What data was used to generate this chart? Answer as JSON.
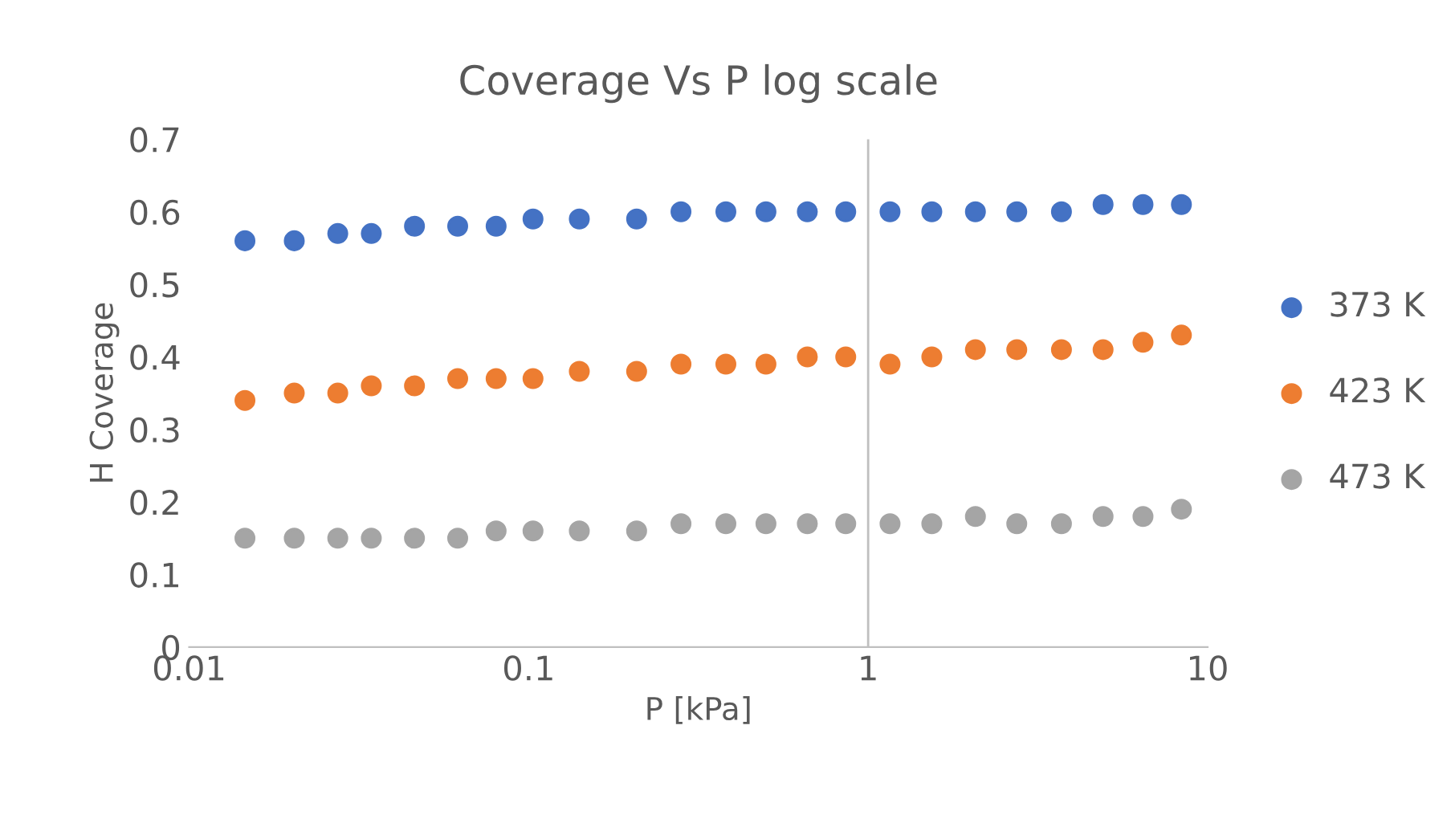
{
  "chart_data": {
    "type": "scatter",
    "title": "Coverage Vs P log scale",
    "xlabel": "P [kPa]",
    "ylabel": "H Coverage",
    "x": [
      0.0146,
      0.0204,
      0.0274,
      0.0344,
      0.0461,
      0.0618,
      0.0802,
      0.103,
      0.141,
      0.208,
      0.281,
      0.381,
      0.5,
      0.662,
      0.859,
      1.16,
      1.54,
      2.07,
      2.74,
      3.71,
      4.92,
      6.45,
      8.37
    ],
    "series": [
      {
        "name": "373 K",
        "color": "#4472c4",
        "values": [
          0.56,
          0.56,
          0.57,
          0.57,
          0.58,
          0.58,
          0.58,
          0.59,
          0.59,
          0.59,
          0.6,
          0.6,
          0.6,
          0.6,
          0.6,
          0.6,
          0.6,
          0.6,
          0.6,
          0.6,
          0.61,
          0.61,
          0.61
        ]
      },
      {
        "name": "423 K",
        "color": "#ed7d31",
        "values": [
          0.34,
          0.35,
          0.35,
          0.36,
          0.36,
          0.37,
          0.37,
          0.37,
          0.38,
          0.38,
          0.39,
          0.39,
          0.39,
          0.4,
          0.4,
          0.39,
          0.4,
          0.41,
          0.41,
          0.41,
          0.41,
          0.42,
          0.43
        ]
      },
      {
        "name": "473 K",
        "color": "#a5a5a5",
        "values": [
          0.15,
          0.15,
          0.15,
          0.15,
          0.15,
          0.15,
          0.16,
          0.16,
          0.16,
          0.16,
          0.17,
          0.17,
          0.17,
          0.17,
          0.17,
          0.17,
          0.17,
          0.18,
          0.17,
          0.17,
          0.18,
          0.18,
          0.19
        ]
      }
    ],
    "log": "x",
    "xlim": [
      0.01,
      10
    ],
    "xticks": [
      0.01,
      0.1,
      1,
      10
    ],
    "ylim": [
      0,
      0.7
    ],
    "yticks": [
      0,
      0.1,
      0.2,
      0.3,
      0.4,
      0.5,
      0.6,
      0.7
    ],
    "ref_lines": [
      {
        "axis": "x",
        "value": 1,
        "color": "#bfbfbf"
      }
    ],
    "grid": false,
    "legend": "right",
    "marker": "circle"
  }
}
